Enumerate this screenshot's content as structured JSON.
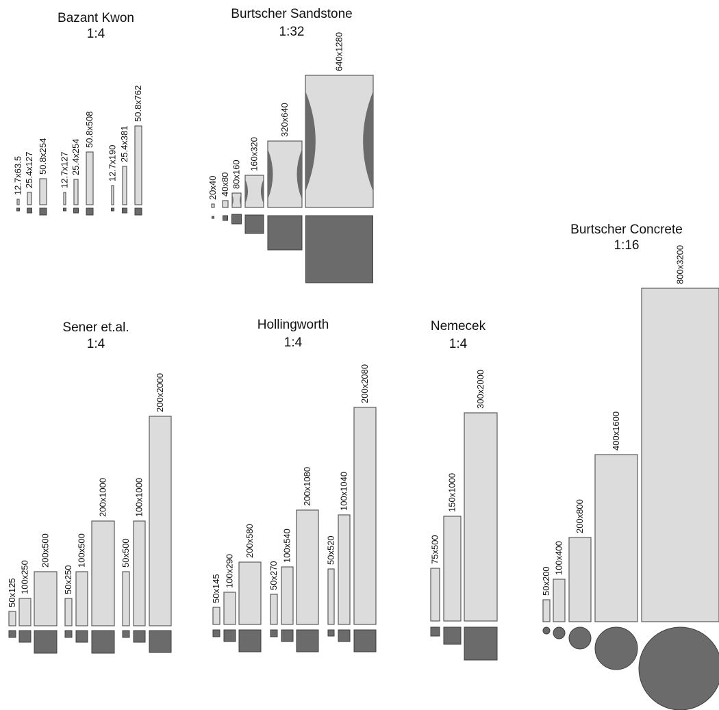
{
  "groups": [
    {
      "id": "bazant-kwon",
      "title": "Bazant Kwon",
      "scale": "1:4",
      "specimens": [
        "12.7x63.5",
        "25.4x127",
        "50.8x254",
        "12.7x127",
        "25.4x254",
        "50.8x508",
        "12.7x190",
        "25.4x381",
        "50.8x762"
      ],
      "section": "square"
    },
    {
      "id": "burtscher-sandstone",
      "title": "Burtscher Sandstone",
      "scale": "1:32",
      "specimens": [
        "20x40",
        "40x80",
        "80x160",
        "160x320",
        "320x640",
        "640x1280"
      ],
      "section": "square",
      "notched": true
    },
    {
      "id": "burtscher-concrete",
      "title": "Burtscher Concrete",
      "scale": "1:16",
      "specimens": [
        "50x200",
        "100x400",
        "200x800",
        "400x1600",
        "800x3200"
      ],
      "section": "circle"
    },
    {
      "id": "sener",
      "title": "Sener et.al.",
      "scale": "1:4",
      "specimens": [
        "50x125",
        "100x250",
        "200x500",
        "50x250",
        "100x500",
        "200x1000",
        "50x500",
        "100x1000",
        "200x2000"
      ],
      "section": "square"
    },
    {
      "id": "hollingworth",
      "title": "Hollingworth",
      "scale": "1:4",
      "specimens": [
        "50x145",
        "100x290",
        "200x580",
        "50x270",
        "100x540",
        "200x1080",
        "50x520",
        "100x1040",
        "200x2080"
      ],
      "section": "square"
    },
    {
      "id": "nemecek",
      "title": "Nemecek",
      "scale": "1:4",
      "specimens": [
        "75x500",
        "150x1000",
        "300x2000"
      ],
      "section": "square"
    }
  ]
}
